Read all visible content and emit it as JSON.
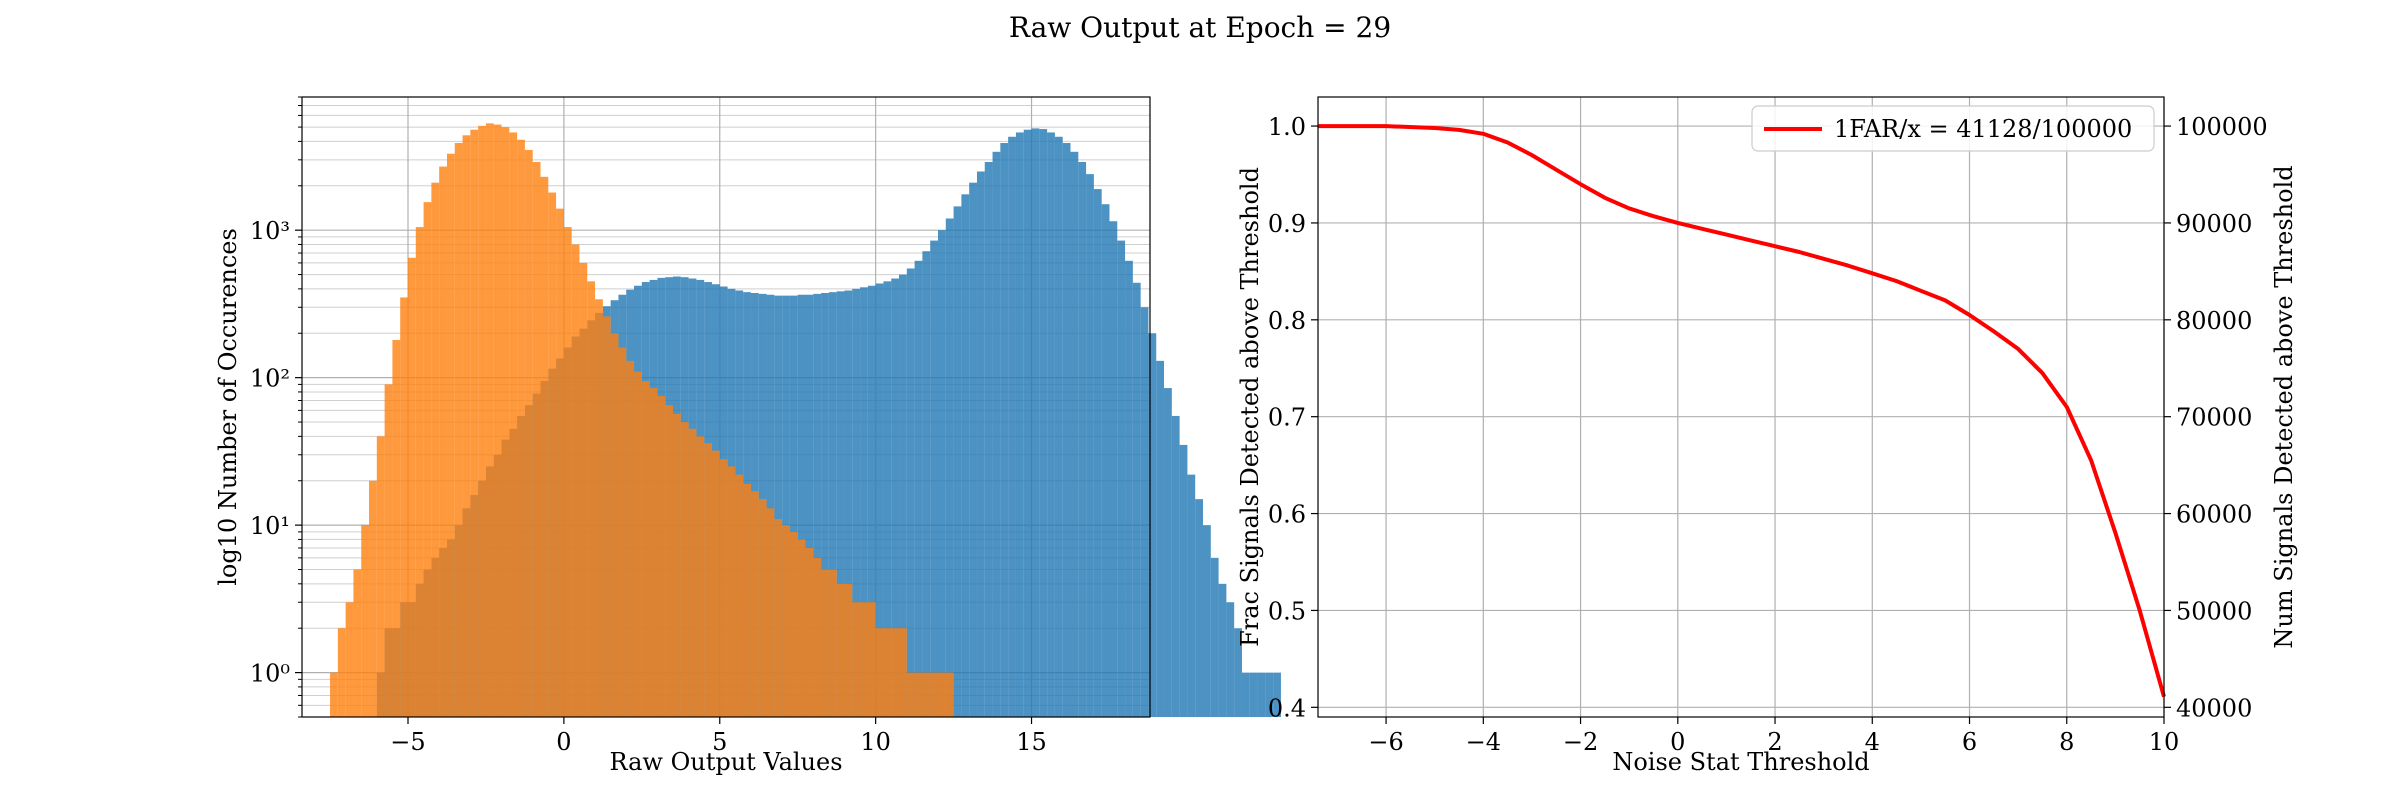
{
  "figure": {
    "suptitle": "Raw Output at Epoch = 29"
  },
  "chart_data": [
    {
      "type": "histogram",
      "title": "",
      "xlabel": "Raw Output Values",
      "ylabel": "log10 Number of Occurences",
      "yscale": "log",
      "xlim": [
        -8.4,
        18.8
      ],
      "ylim": [
        0.5,
        8000
      ],
      "grid": "on (major and minor)",
      "xticks": [
        {
          "v": -5,
          "label": "−5"
        },
        {
          "v": 0,
          "label": "0"
        },
        {
          "v": 5,
          "label": "5"
        },
        {
          "v": 10,
          "label": "10"
        },
        {
          "v": 15,
          "label": "15"
        }
      ],
      "yticks": [
        {
          "v": 1,
          "label": "10⁰"
        },
        {
          "v": 10,
          "label": "10¹"
        },
        {
          "v": 100,
          "label": "10²"
        },
        {
          "v": 1000,
          "label": "10³"
        }
      ],
      "bin_width": 0.25,
      "series": [
        {
          "color": "#1f77b4",
          "bins_start": -6.0,
          "counts": [
            1,
            2,
            2,
            3,
            3,
            4,
            5,
            6,
            7,
            8,
            10,
            13,
            16,
            20,
            25,
            30,
            38,
            45,
            55,
            65,
            78,
            95,
            115,
            135,
            160,
            190,
            215,
            245,
            275,
            305,
            335,
            365,
            395,
            420,
            445,
            460,
            475,
            480,
            485,
            480,
            470,
            460,
            445,
            430,
            415,
            400,
            390,
            380,
            375,
            370,
            365,
            360,
            360,
            360,
            365,
            365,
            370,
            375,
            380,
            385,
            390,
            400,
            410,
            420,
            435,
            450,
            470,
            500,
            550,
            620,
            720,
            850,
            1000,
            1200,
            1450,
            1750,
            2100,
            2500,
            2900,
            3400,
            3900,
            4300,
            4600,
            4800,
            4900,
            4850,
            4600,
            4300,
            3900,
            3400,
            2900,
            2400,
            1900,
            1500,
            1150,
            850,
            620,
            440,
            300,
            200,
            130,
            85,
            55,
            35,
            22,
            15,
            10,
            6,
            4,
            3,
            2,
            1,
            1,
            1,
            1,
            1
          ]
        },
        {
          "color": "#ff7f0e",
          "bins_start": -7.5,
          "counts": [
            1,
            2,
            3,
            5,
            10,
            20,
            40,
            90,
            180,
            350,
            650,
            1050,
            1550,
            2100,
            2700,
            3300,
            3900,
            4400,
            4800,
            5100,
            5300,
            5200,
            5000,
            4600,
            4100,
            3500,
            2900,
            2300,
            1800,
            1400,
            1050,
            800,
            600,
            450,
            340,
            260,
            200,
            160,
            130,
            110,
            95,
            85,
            75,
            65,
            57,
            50,
            45,
            40,
            36,
            32,
            28,
            25,
            22,
            19,
            17,
            15,
            13,
            11,
            10,
            9,
            8,
            7,
            6,
            5,
            5,
            4,
            4,
            3,
            3,
            3,
            2,
            2,
            2,
            2,
            1,
            1,
            1,
            1,
            1,
            1
          ]
        }
      ]
    },
    {
      "type": "line",
      "title": "",
      "xlabel": "Noise Stat Threshold",
      "ylabel": "Frac Signals Detected above Threshold",
      "ylabel_right": "Num Signals Detected above Threshold",
      "xlim": [
        -7.4,
        10
      ],
      "ylim": [
        0.39,
        1.03
      ],
      "ylim_right": [
        39000,
        103000
      ],
      "grid": "on",
      "legend_position": "top-right",
      "xticks": [
        {
          "v": -6,
          "label": "−6"
        },
        {
          "v": -4,
          "label": "−4"
        },
        {
          "v": -2,
          "label": "−2"
        },
        {
          "v": 0,
          "label": "0"
        },
        {
          "v": 2,
          "label": "2"
        },
        {
          "v": 4,
          "label": "4"
        },
        {
          "v": 6,
          "label": "6"
        },
        {
          "v": 8,
          "label": "8"
        },
        {
          "v": 10,
          "label": "10"
        }
      ],
      "yticks": [
        "0.4",
        "0.5",
        "0.6",
        "0.7",
        "0.8",
        "0.9",
        "1.0"
      ],
      "yticks_right": [
        "40000",
        "50000",
        "60000",
        "70000",
        "80000",
        "90000",
        "100000"
      ],
      "series": [
        {
          "name": "1FAR/x = 41128/100000",
          "color": "#ff0000",
          "x": [
            -7.4,
            -6.0,
            -5.0,
            -4.5,
            -4.0,
            -3.5,
            -3.0,
            -2.5,
            -2.0,
            -1.5,
            -1.0,
            -0.5,
            0.0,
            0.5,
            1.0,
            1.5,
            2.0,
            2.5,
            3.0,
            3.5,
            4.0,
            4.5,
            5.0,
            5.5,
            6.0,
            6.5,
            7.0,
            7.5,
            8.0,
            8.5,
            9.0,
            9.5,
            10.0
          ],
          "y": [
            1.0,
            1.0,
            0.998,
            0.996,
            0.992,
            0.983,
            0.97,
            0.955,
            0.94,
            0.926,
            0.915,
            0.907,
            0.9,
            0.894,
            0.888,
            0.882,
            0.876,
            0.87,
            0.863,
            0.856,
            0.848,
            0.84,
            0.83,
            0.82,
            0.805,
            0.788,
            0.77,
            0.745,
            0.71,
            0.655,
            0.58,
            0.5,
            0.411
          ]
        }
      ]
    }
  ]
}
